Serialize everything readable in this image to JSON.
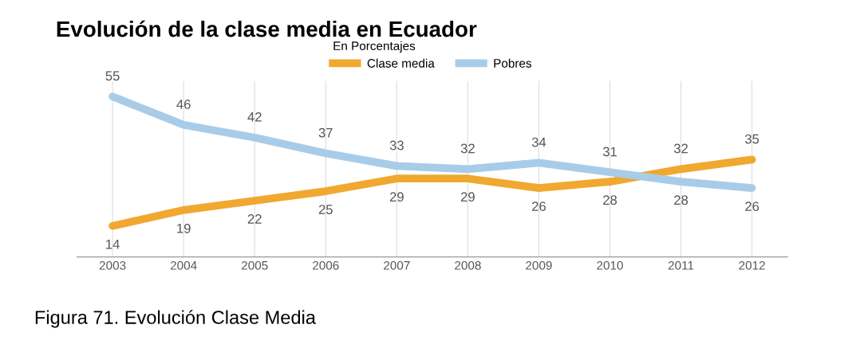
{
  "chart_data": {
    "type": "line",
    "title": "Evolución de la clase media en Ecuador",
    "legend_title": "En Porcentajes",
    "categories": [
      "2003",
      "2004",
      "2005",
      "2006",
      "2007",
      "2008",
      "2009",
      "2010",
      "2011",
      "2012"
    ],
    "series": [
      {
        "name": "Clase media",
        "color": "#f0a830",
        "values": [
          14,
          19,
          22,
          25,
          29,
          29,
          26,
          28,
          32,
          35
        ]
      },
      {
        "name": "Pobres",
        "color": "#a8cce8",
        "values": [
          55,
          46,
          42,
          37,
          33,
          32,
          34,
          31,
          28,
          26
        ]
      }
    ],
    "data_labels": true,
    "grid": "x",
    "legend": "top",
    "marker": "none",
    "line_style": "solid",
    "annotations": [
      "Figura 71. Evolución Clase Media"
    ]
  }
}
